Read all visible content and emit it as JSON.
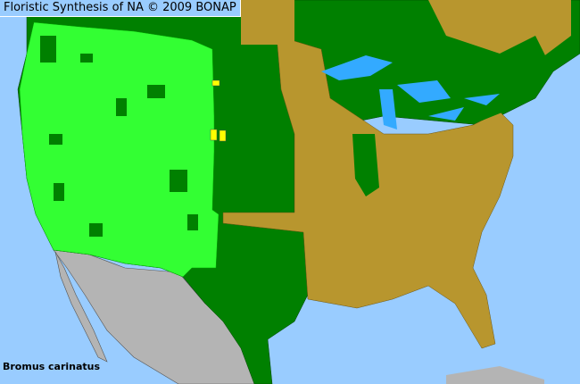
{
  "header": {
    "title": "Floristic Synthesis of NA © 2009 BONAP"
  },
  "map": {
    "species": "Bromus carinatus",
    "colors": {
      "ocean": "#99ccff",
      "native_present": "#00ff00",
      "native_not_rare": "#008000",
      "absent_state": "#b8962e",
      "adventive": "#ffff00",
      "outside_region": "#b4b4b4",
      "lakes": "#33aaff"
    }
  }
}
